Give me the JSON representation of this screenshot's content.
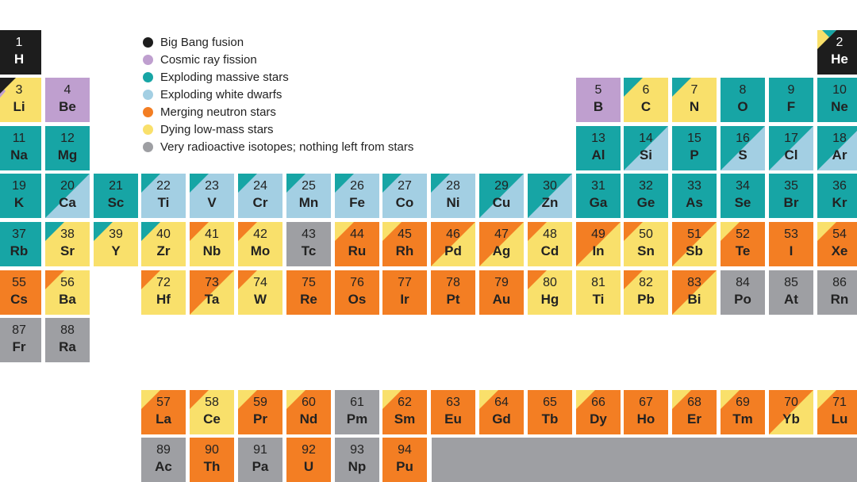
{
  "colors": {
    "bigbang": "#1d1d1d",
    "cosmic": "#bf9fcf",
    "massive": "#17a5a5",
    "white": "#a3cfe3",
    "neutron": "#f37e23",
    "lowmass": "#f9e06b",
    "radioactive": "#9e9fa3"
  },
  "legend": [
    {
      "key": "bigbang",
      "label": "Big Bang fusion",
      "icon": "circle"
    },
    {
      "key": "cosmic",
      "label": "Cosmic ray fission",
      "icon": "circle"
    },
    {
      "key": "massive",
      "label": "Exploding massive stars",
      "icon": "circle"
    },
    {
      "key": "white",
      "label": "Exploding white dwarfs",
      "icon": "circle"
    },
    {
      "key": "neutron",
      "label": "Merging neutron stars",
      "icon": "circle"
    },
    {
      "key": "lowmass",
      "label": "Dying low-mass stars",
      "icon": "circle"
    },
    {
      "key": "radioactive",
      "label": "Very  radioactive isotopes; nothing left from stars",
      "icon": "circle"
    }
  ],
  "elements": [
    {
      "n": "1",
      "s": "H",
      "row": 0,
      "col": 0,
      "main": "bigbang"
    },
    {
      "n": "2",
      "s": "He",
      "row": 0,
      "col": 17,
      "main": "bigbang",
      "corner": [
        "lowmass",
        "massive"
      ]
    },
    {
      "n": "3",
      "s": "Li",
      "row": 1,
      "col": 0,
      "main": "lowmass",
      "corner": [
        "bigbang"
      ],
      "side": "cosmic"
    },
    {
      "n": "4",
      "s": "Be",
      "row": 1,
      "col": 1,
      "main": "cosmic"
    },
    {
      "n": "5",
      "s": "B",
      "row": 1,
      "col": 12,
      "main": "cosmic"
    },
    {
      "n": "6",
      "s": "C",
      "row": 1,
      "col": 13,
      "main": "lowmass",
      "corner": [
        "massive"
      ]
    },
    {
      "n": "7",
      "s": "N",
      "row": 1,
      "col": 14,
      "main": "lowmass",
      "corner": [
        "massive"
      ]
    },
    {
      "n": "8",
      "s": "O",
      "row": 1,
      "col": 15,
      "main": "massive"
    },
    {
      "n": "9",
      "s": "F",
      "row": 1,
      "col": 16,
      "main": "massive"
    },
    {
      "n": "10",
      "s": "Ne",
      "row": 1,
      "col": 17,
      "main": "massive"
    },
    {
      "n": "11",
      "s": "Na",
      "row": 2,
      "col": 0,
      "main": "massive"
    },
    {
      "n": "12",
      "s": "Mg",
      "row": 2,
      "col": 1,
      "main": "massive"
    },
    {
      "n": "13",
      "s": "Al",
      "row": 2,
      "col": 12,
      "main": "massive"
    },
    {
      "n": "14",
      "s": "Si",
      "row": 2,
      "col": 13,
      "main": "massive",
      "diag": "white"
    },
    {
      "n": "15",
      "s": "P",
      "row": 2,
      "col": 14,
      "main": "massive"
    },
    {
      "n": "16",
      "s": "S",
      "row": 2,
      "col": 15,
      "main": "massive",
      "diag": "white"
    },
    {
      "n": "17",
      "s": "Cl",
      "row": 2,
      "col": 16,
      "main": "massive",
      "diag": "white"
    },
    {
      "n": "18",
      "s": "Ar",
      "row": 2,
      "col": 17,
      "main": "massive",
      "diag": "white"
    },
    {
      "n": "19",
      "s": "K",
      "row": 3,
      "col": 0,
      "main": "massive"
    },
    {
      "n": "20",
      "s": "Ca",
      "row": 3,
      "col": 1,
      "main": "massive",
      "diag": "white"
    },
    {
      "n": "21",
      "s": "Sc",
      "row": 3,
      "col": 2,
      "main": "massive"
    },
    {
      "n": "22",
      "s": "Ti",
      "row": 3,
      "col": 3,
      "main": "white",
      "corner": [
        "massive"
      ]
    },
    {
      "n": "23",
      "s": "V",
      "row": 3,
      "col": 4,
      "main": "white",
      "corner": [
        "massive"
      ]
    },
    {
      "n": "24",
      "s": "Cr",
      "row": 3,
      "col": 5,
      "main": "white",
      "corner": [
        "massive"
      ]
    },
    {
      "n": "25",
      "s": "Mn",
      "row": 3,
      "col": 6,
      "main": "white",
      "corner": [
        "massive"
      ]
    },
    {
      "n": "26",
      "s": "Fe",
      "row": 3,
      "col": 7,
      "main": "white",
      "corner": [
        "massive"
      ]
    },
    {
      "n": "27",
      "s": "Co",
      "row": 3,
      "col": 8,
      "main": "white",
      "corner": [
        "massive"
      ]
    },
    {
      "n": "28",
      "s": "Ni",
      "row": 3,
      "col": 9,
      "main": "white",
      "corner": [
        "massive"
      ]
    },
    {
      "n": "29",
      "s": "Cu",
      "row": 3,
      "col": 10,
      "main": "massive",
      "diag": "white"
    },
    {
      "n": "30",
      "s": "Zn",
      "row": 3,
      "col": 11,
      "main": "massive",
      "diag": "white"
    },
    {
      "n": "31",
      "s": "Ga",
      "row": 3,
      "col": 12,
      "main": "massive"
    },
    {
      "n": "32",
      "s": "Ge",
      "row": 3,
      "col": 13,
      "main": "massive"
    },
    {
      "n": "33",
      "s": "As",
      "row": 3,
      "col": 14,
      "main": "massive"
    },
    {
      "n": "34",
      "s": "Se",
      "row": 3,
      "col": 15,
      "main": "massive"
    },
    {
      "n": "35",
      "s": "Br",
      "row": 3,
      "col": 16,
      "main": "massive"
    },
    {
      "n": "36",
      "s": "Kr",
      "row": 3,
      "col": 17,
      "main": "massive"
    },
    {
      "n": "37",
      "s": "Rb",
      "row": 4,
      "col": 0,
      "main": "massive"
    },
    {
      "n": "38",
      "s": "Sr",
      "row": 4,
      "col": 1,
      "main": "lowmass",
      "corner": [
        "massive"
      ]
    },
    {
      "n": "39",
      "s": "Y",
      "row": 4,
      "col": 2,
      "main": "lowmass",
      "corner": [
        "massive"
      ]
    },
    {
      "n": "40",
      "s": "Zr",
      "row": 4,
      "col": 3,
      "main": "lowmass",
      "corner": [
        "massive"
      ]
    },
    {
      "n": "41",
      "s": "Nb",
      "row": 4,
      "col": 4,
      "main": "lowmass",
      "corner": [
        "neutron"
      ]
    },
    {
      "n": "42",
      "s": "Mo",
      "row": 4,
      "col": 5,
      "main": "lowmass",
      "corner": [
        "neutron"
      ]
    },
    {
      "n": "43",
      "s": "Tc",
      "row": 4,
      "col": 6,
      "main": "radioactive"
    },
    {
      "n": "44",
      "s": "Ru",
      "row": 4,
      "col": 7,
      "main": "neutron",
      "corner": [
        "lowmass"
      ]
    },
    {
      "n": "45",
      "s": "Rh",
      "row": 4,
      "col": 8,
      "main": "neutron",
      "corner": [
        "lowmass"
      ]
    },
    {
      "n": "46",
      "s": "Pd",
      "row": 4,
      "col": 9,
      "main": "neutron",
      "diag": "lowmass"
    },
    {
      "n": "47",
      "s": "Ag",
      "row": 4,
      "col": 10,
      "main": "neutron",
      "diag": "lowmass"
    },
    {
      "n": "48",
      "s": "Cd",
      "row": 4,
      "col": 11,
      "main": "lowmass",
      "corner": [
        "neutron"
      ]
    },
    {
      "n": "49",
      "s": "In",
      "row": 4,
      "col": 12,
      "main": "neutron",
      "diag": "lowmass"
    },
    {
      "n": "50",
      "s": "Sn",
      "row": 4,
      "col": 13,
      "main": "lowmass",
      "corner": [
        "neutron"
      ]
    },
    {
      "n": "51",
      "s": "Sb",
      "row": 4,
      "col": 14,
      "main": "neutron",
      "diag": "lowmass"
    },
    {
      "n": "52",
      "s": "Te",
      "row": 4,
      "col": 15,
      "main": "neutron",
      "corner": [
        "lowmass"
      ]
    },
    {
      "n": "53",
      "s": "I",
      "row": 4,
      "col": 16,
      "main": "neutron"
    },
    {
      "n": "54",
      "s": "Xe",
      "row": 4,
      "col": 17,
      "main": "neutron",
      "corner": [
        "lowmass"
      ]
    },
    {
      "n": "55",
      "s": "Cs",
      "row": 5,
      "col": 0,
      "main": "neutron"
    },
    {
      "n": "56",
      "s": "Ba",
      "row": 5,
      "col": 1,
      "main": "lowmass",
      "corner": [
        "neutron"
      ]
    },
    {
      "n": "72",
      "s": "Hf",
      "row": 5,
      "col": 3,
      "main": "lowmass",
      "corner": [
        "neutron"
      ]
    },
    {
      "n": "73",
      "s": "Ta",
      "row": 5,
      "col": 4,
      "main": "neutron",
      "diag": "lowmass"
    },
    {
      "n": "74",
      "s": "W",
      "row": 5,
      "col": 5,
      "main": "lowmass",
      "corner": [
        "neutron"
      ]
    },
    {
      "n": "75",
      "s": "Re",
      "row": 5,
      "col": 6,
      "main": "neutron"
    },
    {
      "n": "76",
      "s": "Os",
      "row": 5,
      "col": 7,
      "main": "neutron"
    },
    {
      "n": "77",
      "s": "Ir",
      "row": 5,
      "col": 8,
      "main": "neutron"
    },
    {
      "n": "78",
      "s": "Pt",
      "row": 5,
      "col": 9,
      "main": "neutron"
    },
    {
      "n": "79",
      "s": "Au",
      "row": 5,
      "col": 10,
      "main": "neutron"
    },
    {
      "n": "80",
      "s": "Hg",
      "row": 5,
      "col": 11,
      "main": "lowmass",
      "corner": [
        "neutron"
      ]
    },
    {
      "n": "81",
      "s": "Ti",
      "row": 5,
      "col": 12,
      "main": "lowmass"
    },
    {
      "n": "82",
      "s": "Pb",
      "row": 5,
      "col": 13,
      "main": "lowmass",
      "corner": [
        "neutron"
      ]
    },
    {
      "n": "83",
      "s": "Bi",
      "row": 5,
      "col": 14,
      "main": "neutron",
      "diag": "lowmass"
    },
    {
      "n": "84",
      "s": "Po",
      "row": 5,
      "col": 15,
      "main": "radioactive"
    },
    {
      "n": "85",
      "s": "At",
      "row": 5,
      "col": 16,
      "main": "radioactive"
    },
    {
      "n": "86",
      "s": "Rn",
      "row": 5,
      "col": 17,
      "main": "radioactive"
    },
    {
      "n": "87",
      "s": "Fr",
      "row": 6,
      "col": 0,
      "main": "radioactive"
    },
    {
      "n": "88",
      "s": "Ra",
      "row": 6,
      "col": 1,
      "main": "radioactive"
    },
    {
      "n": "57",
      "s": "La",
      "row": 8,
      "col": 3,
      "main": "neutron",
      "corner": [
        "lowmass"
      ]
    },
    {
      "n": "58",
      "s": "Ce",
      "row": 8,
      "col": 4,
      "main": "lowmass",
      "corner": [
        "neutron"
      ]
    },
    {
      "n": "59",
      "s": "Pr",
      "row": 8,
      "col": 5,
      "main": "neutron",
      "corner": [
        "lowmass"
      ]
    },
    {
      "n": "60",
      "s": "Nd",
      "row": 8,
      "col": 6,
      "main": "neutron",
      "corner": [
        "lowmass"
      ]
    },
    {
      "n": "61",
      "s": "Pm",
      "row": 8,
      "col": 7,
      "main": "radioactive"
    },
    {
      "n": "62",
      "s": "Sm",
      "row": 8,
      "col": 8,
      "main": "neutron",
      "corner": [
        "lowmass"
      ]
    },
    {
      "n": "63",
      "s": "Eu",
      "row": 8,
      "col": 9,
      "main": "neutron"
    },
    {
      "n": "64",
      "s": "Gd",
      "row": 8,
      "col": 10,
      "main": "neutron",
      "corner": [
        "lowmass"
      ]
    },
    {
      "n": "65",
      "s": "Tb",
      "row": 8,
      "col": 11,
      "main": "neutron"
    },
    {
      "n": "66",
      "s": "Dy",
      "row": 8,
      "col": 12,
      "main": "neutron",
      "corner": [
        "lowmass"
      ]
    },
    {
      "n": "67",
      "s": "Ho",
      "row": 8,
      "col": 13,
      "main": "neutron"
    },
    {
      "n": "68",
      "s": "Er",
      "row": 8,
      "col": 14,
      "main": "neutron",
      "corner": [
        "lowmass"
      ]
    },
    {
      "n": "69",
      "s": "Tm",
      "row": 8,
      "col": 15,
      "main": "neutron",
      "corner": [
        "lowmass"
      ]
    },
    {
      "n": "70",
      "s": "Yb",
      "row": 8,
      "col": 16,
      "main": "neutron",
      "diag": "lowmass"
    },
    {
      "n": "71",
      "s": "Lu",
      "row": 8,
      "col": 17,
      "main": "neutron",
      "corner": [
        "lowmass"
      ]
    },
    {
      "n": "89",
      "s": "Ac",
      "row": 9,
      "col": 3,
      "main": "radioactive"
    },
    {
      "n": "90",
      "s": "Th",
      "row": 9,
      "col": 4,
      "main": "neutron"
    },
    {
      "n": "91",
      "s": "Pa",
      "row": 9,
      "col": 5,
      "main": "radioactive"
    },
    {
      "n": "92",
      "s": "U",
      "row": 9,
      "col": 6,
      "main": "neutron"
    },
    {
      "n": "93",
      "s": "Np",
      "row": 9,
      "col": 7,
      "main": "radioactive"
    },
    {
      "n": "94",
      "s": "Pu",
      "row": 9,
      "col": 8,
      "main": "neutron"
    }
  ]
}
